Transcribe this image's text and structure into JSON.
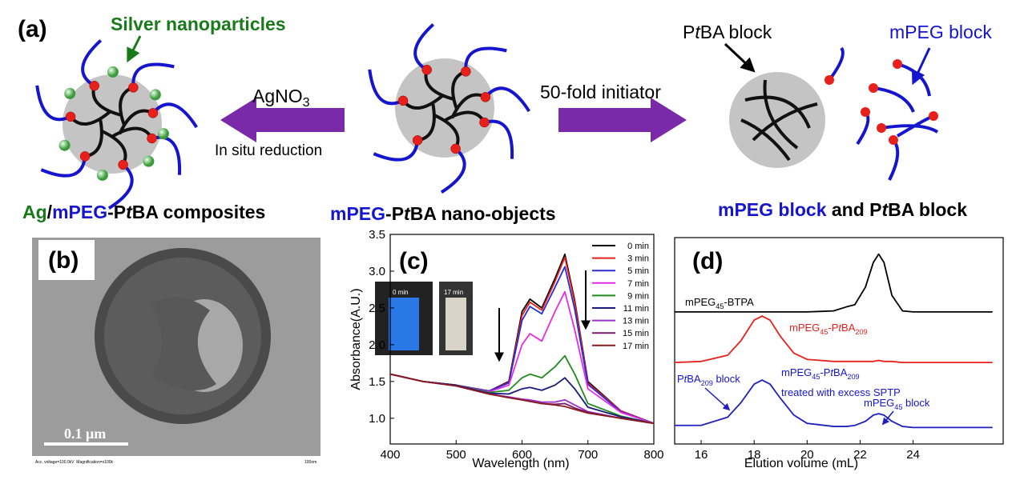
{
  "panel_a": {
    "panel_label": "(a)",
    "silver": "Silver nanoparticles",
    "agno3": [
      "AgNO",
      "3"
    ],
    "in_situ": "In situ reduction",
    "initiator": "50-fold initiator",
    "ptba_block": [
      "P",
      "t",
      "BA block"
    ],
    "mpeg_block": "mPEG block",
    "composites": [
      "Ag",
      "/",
      "mPEG",
      "-P",
      "t",
      "BA composites"
    ],
    "nano_objects": [
      "mPEG",
      "-P",
      "t",
      "BA nano-objects"
    ],
    "blocks": [
      "mPEG block",
      " and P",
      "t",
      "BA block"
    ]
  },
  "panel_b": {
    "panel_label": "(b)",
    "scale_bar": "0.1 μm",
    "footer_left": "Acc. voltage=100.0kV  Magnification=x100k",
    "footer_right": "100nm"
  },
  "chart_data": [
    {
      "type": "line",
      "panel_label": "(c)",
      "x_label": "Wavelength (nm)",
      "y_label": "Absorbance(A.U.)",
      "inset_labels": [
        "0 min",
        "17 min"
      ],
      "x": [
        400,
        450,
        500,
        550,
        580,
        600,
        612,
        630,
        650,
        665,
        680,
        700,
        750,
        800
      ],
      "xlim": [
        400,
        800
      ],
      "xticks": [
        400,
        500,
        600,
        700,
        800
      ],
      "ylim": [
        0.65,
        3.5
      ],
      "yticks": [
        {
          "value": 1,
          "label": "1.0"
        },
        1.5,
        {
          "value": 2,
          "label": "2.0"
        },
        2.5,
        {
          "value": 3,
          "label": "3.0"
        },
        3.5
      ],
      "series": [
        {
          "name": "0 min",
          "color": "#000000",
          "values": [
            1.6,
            1.5,
            1.45,
            1.37,
            1.5,
            2.45,
            2.62,
            2.5,
            2.9,
            3.23,
            2.6,
            1.5,
            1.1,
            0.93
          ]
        },
        {
          "name": "3 min",
          "color": "#e8201c",
          "values": [
            1.6,
            1.5,
            1.45,
            1.37,
            1.49,
            2.4,
            2.58,
            2.47,
            2.86,
            3.19,
            2.57,
            1.48,
            1.1,
            0.93
          ]
        },
        {
          "name": "5 min",
          "color": "#2b2bd6",
          "values": [
            1.6,
            1.5,
            1.45,
            1.37,
            1.48,
            2.33,
            2.52,
            2.42,
            2.78,
            3.06,
            2.48,
            1.46,
            1.09,
            0.93
          ]
        },
        {
          "name": "7 min",
          "color": "#e62be6",
          "values": [
            1.6,
            1.5,
            1.45,
            1.36,
            1.45,
            2.0,
            2.15,
            2.05,
            2.45,
            2.72,
            2.2,
            1.4,
            1.08,
            0.93
          ]
        },
        {
          "name": "9 min",
          "color": "#1f8a1f",
          "values": [
            1.6,
            1.5,
            1.45,
            1.35,
            1.38,
            1.55,
            1.6,
            1.55,
            1.7,
            1.85,
            1.6,
            1.2,
            1.03,
            0.93
          ]
        },
        {
          "name": "11 min",
          "color": "#1a1a80",
          "values": [
            1.6,
            1.5,
            1.45,
            1.34,
            1.33,
            1.4,
            1.42,
            1.38,
            1.45,
            1.55,
            1.4,
            1.15,
            1.02,
            0.93
          ]
        },
        {
          "name": "13 min",
          "color": "#9a30d0",
          "values": [
            1.6,
            1.5,
            1.44,
            1.33,
            1.29,
            1.26,
            1.25,
            1.22,
            1.22,
            1.25,
            1.18,
            1.09,
            1.0,
            0.93
          ]
        },
        {
          "name": "15 min",
          "color": "#7a1a6e",
          "values": [
            1.6,
            1.5,
            1.44,
            1.33,
            1.28,
            1.25,
            1.23,
            1.2,
            1.19,
            1.2,
            1.14,
            1.08,
            1.0,
            0.93
          ]
        },
        {
          "name": "17 min",
          "color": "#8a1a1a",
          "values": [
            1.6,
            1.5,
            1.44,
            1.33,
            1.28,
            1.25,
            1.23,
            1.2,
            1.18,
            1.16,
            1.12,
            1.07,
            1.0,
            0.93
          ]
        }
      ]
    },
    {
      "type": "line",
      "panel_label": "(d)",
      "x_label": "Elution volume (mL)",
      "x": [
        15,
        16,
        17,
        17.5,
        18,
        18.3,
        18.6,
        19,
        19.5,
        20,
        21,
        21.5,
        21.8,
        22.2,
        22.5,
        22.7,
        22.9,
        23.2,
        23.6,
        24,
        25,
        27
      ],
      "xlim": [
        15,
        27.4
      ],
      "xticks": [
        16,
        18,
        20,
        22,
        24
      ],
      "ylim": [
        0,
        1
      ],
      "series": [
        {
          "color": "#000000",
          "values": [
            0.64,
            0.64,
            0.64,
            0.64,
            0.64,
            0.64,
            0.64,
            0.64,
            0.64,
            0.64,
            0.645,
            0.665,
            0.675,
            0.76,
            0.88,
            0.92,
            0.88,
            0.72,
            0.645,
            0.64,
            0.64,
            0.64
          ]
        },
        {
          "color": "#e8201c",
          "values": [
            0.395,
            0.4,
            0.43,
            0.5,
            0.6,
            0.62,
            0.6,
            0.52,
            0.44,
            0.41,
            0.4,
            0.4,
            0.4,
            0.4,
            0.4,
            0.405,
            0.4,
            0.4,
            0.395,
            0.395,
            0.395,
            0.395
          ]
        },
        {
          "color": "#2020c0",
          "values": [
            0.09,
            0.09,
            0.13,
            0.2,
            0.29,
            0.31,
            0.29,
            0.22,
            0.14,
            0.1,
            0.085,
            0.085,
            0.09,
            0.11,
            0.14,
            0.147,
            0.14,
            0.11,
            0.085,
            0.08,
            0.08,
            0.08
          ]
        }
      ],
      "annotations": {
        "black": [
          "mPEG",
          "45",
          "-BTPA"
        ],
        "red": [
          "mPEG",
          "45",
          "-P",
          "t",
          "BA",
          "209"
        ],
        "blue_block": [
          "P",
          "t",
          "BA",
          "209",
          " block"
        ],
        "blue_treated": [
          "mPEG",
          "45",
          "-P",
          "t",
          "BA",
          "209"
        ],
        "treated_note": "treated with excess SPTP",
        "mpeg_block": [
          "mPEG",
          "45",
          " block"
        ]
      }
    }
  ]
}
